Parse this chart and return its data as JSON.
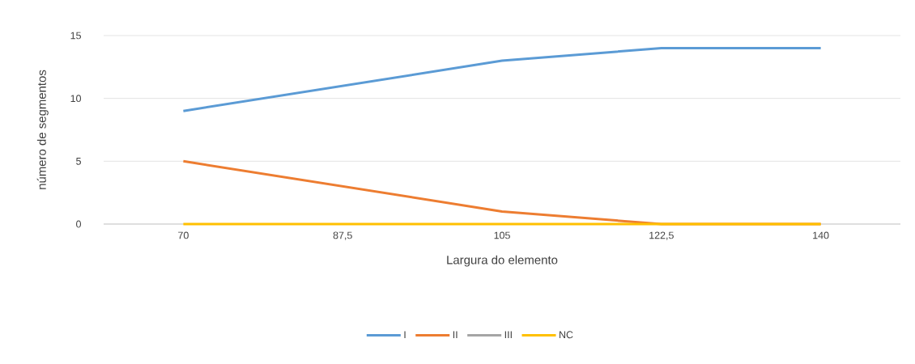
{
  "chart_data": {
    "type": "line",
    "xlabel": "Largura do elemento",
    "ylabel": "número de segmentos",
    "categories": [
      "70",
      "87,5",
      "105",
      "122,5",
      "140"
    ],
    "series": [
      {
        "name": "I",
        "color": "#5b9bd5",
        "values": [
          9,
          11,
          13,
          14,
          14
        ]
      },
      {
        "name": "II",
        "color": "#ed7d31",
        "values": [
          5,
          3,
          1,
          0,
          0
        ]
      },
      {
        "name": "III",
        "color": "#a5a5a5",
        "values": [
          null,
          null,
          null,
          null,
          null
        ]
      },
      {
        "name": "NC",
        "color": "#ffc000",
        "values": [
          0,
          0,
          0,
          0,
          0
        ]
      }
    ],
    "ylim": [
      0,
      15
    ],
    "yticks": [
      0,
      5,
      10,
      15
    ],
    "grid": "y",
    "legend": "bottom",
    "marker": "none",
    "line_style": "solid"
  }
}
